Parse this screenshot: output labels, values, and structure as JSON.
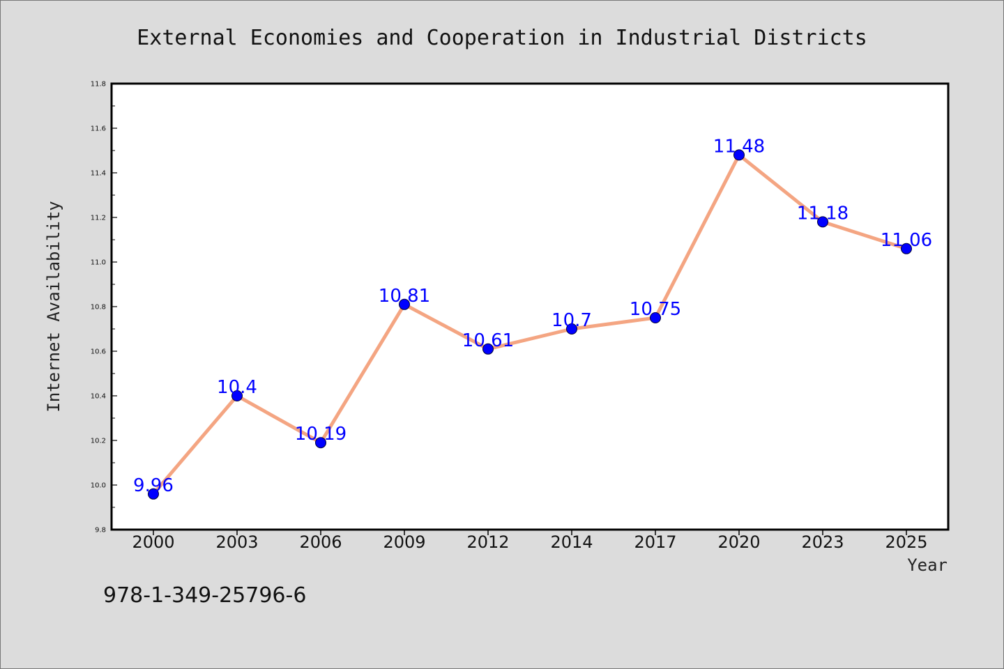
{
  "chart_data": {
    "type": "line",
    "title": "External Economies and Cooperation in Industrial Districts",
    "xlabel": "Year",
    "ylabel": "Internet Availability",
    "categories": [
      "2000",
      "2003",
      "2006",
      "2009",
      "2012",
      "2014",
      "2017",
      "2020",
      "2023",
      "2025"
    ],
    "series": [
      {
        "values": [
          9.96,
          10.4,
          10.19,
          10.81,
          10.61,
          10.7,
          10.75,
          11.48,
          11.18,
          11.06
        ],
        "labels": [
          "9.96",
          "10.4",
          "10.19",
          "10.81",
          "10.61",
          "10.7",
          "10.75",
          "11.48",
          "11.18",
          "11.06"
        ],
        "line_color": "#f4a582",
        "marker_color": "#0000ff"
      }
    ],
    "ylim": [
      9.8,
      11.8
    ],
    "yticks": [
      "9.8",
      "10.0",
      "10.2",
      "10.4",
      "10.6",
      "10.8",
      "11.0",
      "11.2",
      "11.4",
      "11.6",
      "11.8"
    ],
    "grid": false,
    "legend": "none"
  },
  "footer": {
    "isbn": "978-1-349-25796-6"
  }
}
